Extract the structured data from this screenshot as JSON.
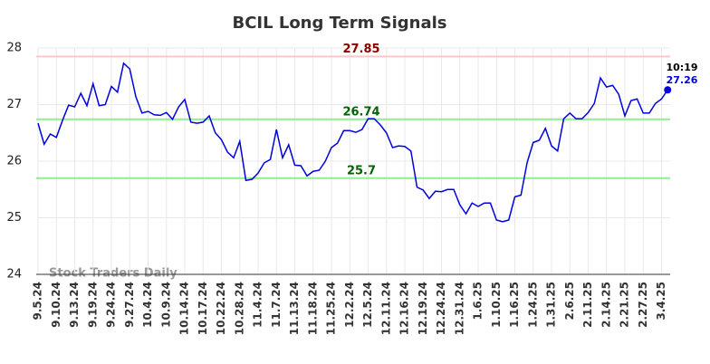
{
  "chart_data": {
    "type": "line",
    "title": "BCIL Long Term Signals",
    "categories": [
      "9.5.24",
      null,
      null,
      "9.10.24",
      null,
      null,
      "9.13.24",
      null,
      null,
      "9.19.24",
      null,
      null,
      "9.24.24",
      null,
      null,
      "9.27.24",
      null,
      null,
      "10.4.24",
      null,
      null,
      "10.9.24",
      null,
      null,
      "10.14.24",
      null,
      null,
      "10.17.24",
      null,
      null,
      "10.22.24",
      null,
      null,
      "10.28.24",
      null,
      null,
      "11.4.24",
      null,
      null,
      "11.7.24",
      null,
      null,
      "11.13.24",
      null,
      null,
      "11.18.24",
      null,
      null,
      "11.25.24",
      null,
      null,
      "12.2.24",
      null,
      null,
      "12.5.24",
      null,
      null,
      "12.11.24",
      null,
      null,
      "12.16.24",
      null,
      null,
      "12.19.24",
      null,
      null,
      "12.24.24",
      null,
      null,
      "12.31.24",
      null,
      null,
      "1.6.25",
      null,
      null,
      "1.10.25",
      null,
      null,
      "1.16.25",
      null,
      null,
      "1.24.25",
      null,
      null,
      "1.31.25",
      null,
      null,
      "2.6.25",
      null,
      null,
      "2.11.25",
      null,
      null,
      "2.14.25",
      null,
      null,
      "2.21.25",
      null,
      null,
      "2.27.25",
      null,
      null,
      "3.4.25",
      null
    ],
    "series": [
      {
        "color": "#0000dd",
        "values": [
          26.67,
          26.3,
          26.48,
          26.42,
          26.72,
          26.99,
          26.96,
          27.2,
          26.98,
          27.37,
          26.98,
          27.0,
          27.32,
          27.22,
          27.73,
          27.63,
          27.14,
          26.85,
          26.88,
          26.82,
          26.81,
          26.86,
          26.74,
          26.96,
          27.09,
          26.69,
          26.67,
          26.69,
          26.8,
          26.5,
          26.38,
          26.16,
          26.06,
          26.35,
          25.66,
          25.68,
          25.79,
          25.97,
          26.03,
          26.56,
          26.06,
          26.29,
          25.93,
          25.92,
          25.74,
          25.82,
          25.84,
          26.0,
          26.24,
          26.32,
          26.54,
          26.54,
          26.51,
          26.56,
          26.75,
          26.75,
          26.64,
          26.5,
          26.24,
          26.27,
          26.26,
          26.18,
          25.54,
          25.49,
          25.34,
          25.47,
          25.46,
          25.5,
          25.5,
          25.23,
          25.07,
          25.26,
          25.2,
          25.26,
          25.26,
          24.96,
          24.93,
          24.96,
          25.37,
          25.4,
          25.97,
          26.33,
          26.37,
          26.58,
          26.27,
          26.18,
          26.75,
          26.85,
          26.75,
          26.75,
          26.86,
          27.02,
          27.47,
          27.31,
          27.34,
          27.18,
          26.8,
          27.07,
          27.1,
          26.85,
          26.85,
          27.02,
          27.1,
          27.26
        ]
      }
    ],
    "hlines": [
      {
        "value": 27.85,
        "color": "#ffc8c8",
        "label_color": "#8b0000"
      },
      {
        "value": 26.74,
        "color": "#90ee90",
        "label_color": "#006400"
      },
      {
        "value": 25.7,
        "color": "#90ee90",
        "label_color": "#006400"
      }
    ],
    "last_label": "10:19",
    "watermark": "Stock Traders Daily",
    "ylim": [
      24,
      28
    ],
    "yticks": [
      24,
      25,
      26,
      27,
      28
    ],
    "grid": true
  }
}
